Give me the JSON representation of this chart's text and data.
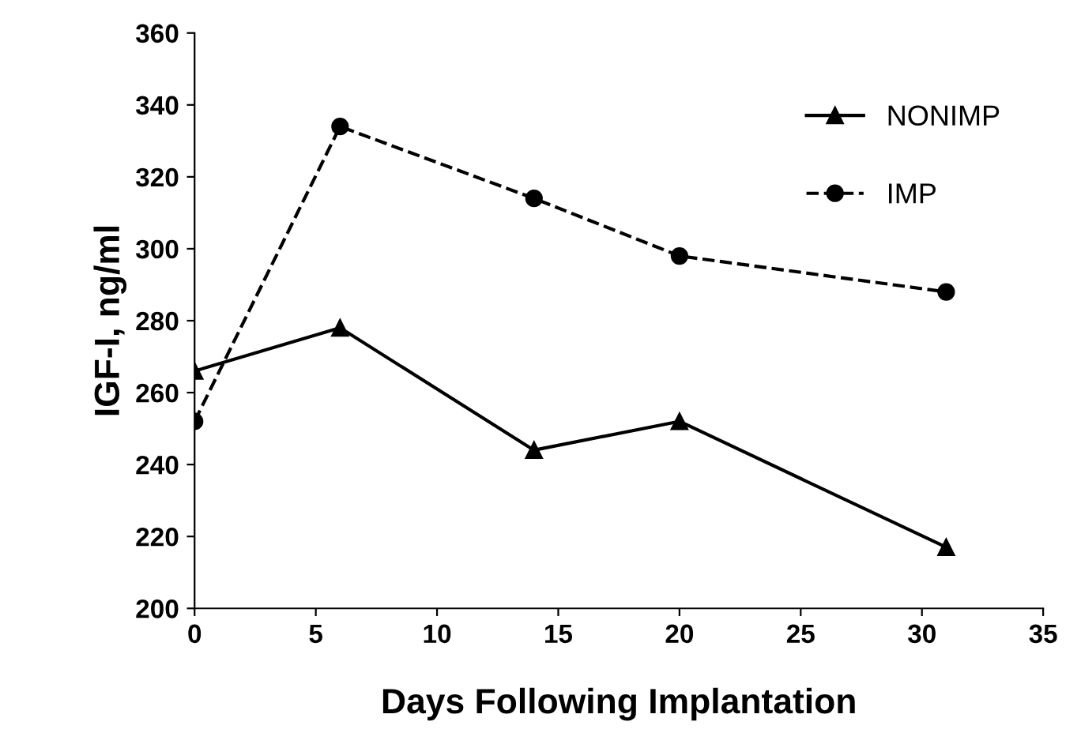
{
  "chart_data": {
    "type": "line",
    "xlabel": "Days Following Implantation",
    "ylabel": "IGF-I, ng/ml",
    "xlim": [
      0,
      35
    ],
    "xticks": [
      0,
      5,
      10,
      15,
      20,
      25,
      30,
      35
    ],
    "ylim": [
      200,
      360
    ],
    "yticks": [
      200,
      220,
      240,
      260,
      280,
      300,
      320,
      340,
      360
    ],
    "grid": false,
    "legend": "top right",
    "series": [
      {
        "name": "NONIMP",
        "color": "#000000",
        "marker": "triangle",
        "line_style": "solid",
        "x": [
          0,
          6,
          14,
          20,
          31
        ],
        "values": [
          266,
          278,
          244,
          252,
          217
        ]
      },
      {
        "name": "IMP",
        "color": "#000000",
        "marker": "circle",
        "line_style": "dashed",
        "x": [
          0,
          6,
          14,
          20,
          31
        ],
        "values": [
          252,
          334,
          314,
          298,
          288
        ]
      }
    ]
  }
}
